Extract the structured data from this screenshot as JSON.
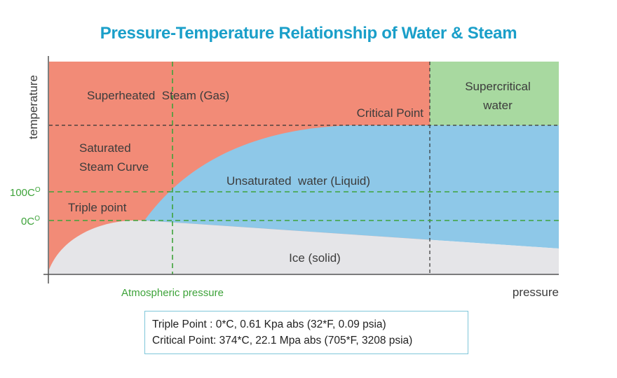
{
  "title": "Pressure-Temperature Relationship of Water & Steam",
  "colors": {
    "title": "#1a9fc9",
    "gas": "#f28b77",
    "liquid": "#8ec8e8",
    "solid": "#e5e5e8",
    "supercritical": "#a8d9a0",
    "green_lines": "#3ea33a",
    "dark_lines": "#333333"
  },
  "regions": {
    "superheated_steam": "Superheated  Steam (Gas)",
    "supercritical": [
      "Supercritical",
      "water"
    ],
    "critical_point": "Critical Point",
    "saturated_curve": [
      "Saturated",
      "Steam Curve"
    ],
    "unsaturated_water": "Unsaturated  water (Liquid)",
    "triple_point": "Triple point",
    "ice": "Ice (solid)"
  },
  "axes": {
    "y_label": "temperature",
    "x_label": "pressure",
    "tick_100": "100C",
    "tick_100_sup": "O",
    "tick_0": "0C",
    "tick_0_sup": "O",
    "atmospheric": "Atmospheric pressure"
  },
  "notes": [
    "Triple Point : 0*C, 0.61 Kpa abs (32*F, 0.09 psia)",
    "Critical Point: 374*C, 22.1 Mpa abs (705*F, 3208 psia)"
  ]
}
